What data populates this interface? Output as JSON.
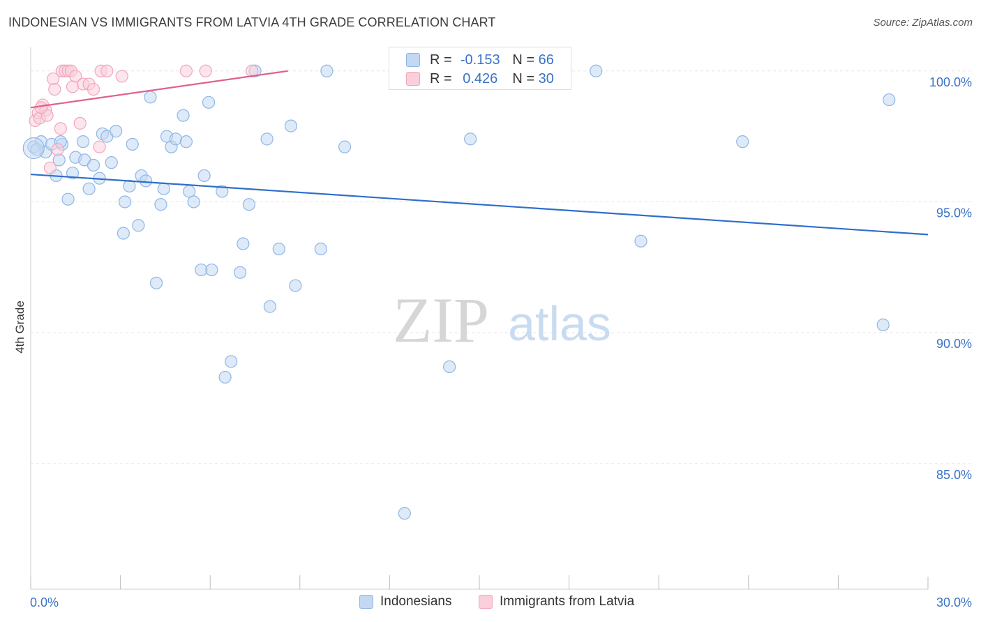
{
  "title": "INDONESIAN VS IMMIGRANTS FROM LATVIA 4TH GRADE CORRELATION CHART",
  "source": "Source: ZipAtlas.com",
  "watermark": {
    "zip": "ZIP",
    "atlas": "atlas"
  },
  "colors": {
    "blue": "#8fb6e6",
    "blue_fill": "#c3d8f3",
    "blue_line": "#2e6fcb",
    "pink": "#f2a6bd",
    "pink_fill": "#f9cfdc",
    "pink_line": "#e0608a",
    "grid": "#e3e3e3",
    "axis_text": "#3a72c6"
  },
  "stats": [
    {
      "r_label": "R =",
      "r_value": "-0.153",
      "n_label": "N =",
      "n_value": "66"
    },
    {
      "r_label": "R =",
      "r_value": "0.426",
      "n_label": "N =",
      "n_value": "30"
    }
  ],
  "legend": [
    {
      "label": "Indonesians"
    },
    {
      "label": "Immigrants from Latvia"
    }
  ],
  "chart_data": {
    "type": "scatter",
    "title": "INDONESIAN VS IMMIGRANTS FROM LATVIA 4TH GRADE CORRELATION CHART",
    "xlabel": "",
    "ylabel": "4th Grade",
    "xlim": [
      0,
      30
    ],
    "ylim": [
      80.2,
      100.9
    ],
    "x_tick_labels": [
      "0.0%",
      "30.0%"
    ],
    "y_ticks": [
      85,
      90,
      95,
      100
    ],
    "y_tick_labels": [
      "85.0%",
      "90.0%",
      "95.0%",
      "100.0%"
    ],
    "grid": true,
    "series": [
      {
        "name": "Indonesians",
        "points": [
          [
            0.1,
            97.1
          ],
          [
            0.35,
            97.3
          ],
          [
            0.5,
            96.9
          ],
          [
            0.7,
            97.2
          ],
          [
            0.85,
            96.0
          ],
          [
            0.95,
            96.6
          ],
          [
            1.05,
            97.2
          ],
          [
            1.25,
            95.1
          ],
          [
            1.4,
            96.1
          ],
          [
            1.5,
            96.7
          ],
          [
            1.75,
            97.3
          ],
          [
            1.8,
            96.6
          ],
          [
            1.95,
            95.5
          ],
          [
            2.1,
            96.4
          ],
          [
            2.3,
            95.9
          ],
          [
            2.4,
            97.6
          ],
          [
            2.55,
            97.5
          ],
          [
            2.7,
            96.5
          ],
          [
            2.85,
            97.7
          ],
          [
            3.1,
            93.8
          ],
          [
            3.15,
            95.0
          ],
          [
            3.3,
            95.6
          ],
          [
            3.4,
            97.2
          ],
          [
            3.6,
            94.1
          ],
          [
            3.7,
            96.0
          ],
          [
            3.85,
            95.8
          ],
          [
            4.0,
            99.0
          ],
          [
            4.2,
            91.9
          ],
          [
            4.35,
            94.9
          ],
          [
            4.45,
            95.5
          ],
          [
            4.55,
            97.5
          ],
          [
            4.7,
            97.1
          ],
          [
            4.85,
            97.4
          ],
          [
            5.1,
            98.3
          ],
          [
            5.2,
            97.3
          ],
          [
            5.3,
            95.4
          ],
          [
            5.45,
            95.0
          ],
          [
            5.7,
            92.4
          ],
          [
            5.8,
            96.0
          ],
          [
            5.95,
            98.8
          ],
          [
            6.05,
            92.4
          ],
          [
            6.4,
            95.4
          ],
          [
            6.5,
            88.3
          ],
          [
            6.7,
            88.9
          ],
          [
            7.0,
            92.3
          ],
          [
            7.1,
            93.4
          ],
          [
            7.3,
            94.9
          ],
          [
            7.5,
            100.0
          ],
          [
            7.9,
            97.4
          ],
          [
            8.0,
            91.0
          ],
          [
            8.3,
            93.2
          ],
          [
            8.7,
            97.9
          ],
          [
            8.85,
            91.8
          ],
          [
            9.7,
            93.2
          ],
          [
            9.9,
            100.0
          ],
          [
            10.5,
            97.1
          ],
          [
            12.5,
            83.1
          ],
          [
            14.0,
            88.7
          ],
          [
            14.7,
            97.4
          ],
          [
            18.9,
            100.0
          ],
          [
            20.4,
            93.5
          ],
          [
            23.8,
            97.3
          ],
          [
            28.5,
            90.3
          ],
          [
            28.7,
            98.9
          ],
          [
            0.2,
            97.0
          ],
          [
            1.0,
            97.3
          ]
        ]
      },
      {
        "name": "Immigrants from Latvia",
        "points": [
          [
            0.15,
            98.1
          ],
          [
            0.25,
            98.4
          ],
          [
            0.3,
            98.2
          ],
          [
            0.4,
            98.7
          ],
          [
            0.5,
            98.5
          ],
          [
            0.55,
            98.3
          ],
          [
            0.65,
            96.3
          ],
          [
            0.75,
            99.7
          ],
          [
            0.8,
            99.3
          ],
          [
            0.9,
            97.0
          ],
          [
            1.0,
            97.8
          ],
          [
            1.05,
            100.0
          ],
          [
            1.15,
            100.0
          ],
          [
            1.25,
            100.0
          ],
          [
            1.35,
            100.0
          ],
          [
            1.4,
            99.4
          ],
          [
            1.5,
            99.8
          ],
          [
            1.65,
            98.0
          ],
          [
            1.75,
            99.5
          ],
          [
            1.95,
            99.5
          ],
          [
            2.1,
            99.3
          ],
          [
            2.35,
            100.0
          ],
          [
            2.3,
            97.1
          ],
          [
            2.55,
            100.0
          ],
          [
            3.05,
            99.8
          ],
          [
            5.2,
            100.0
          ],
          [
            5.85,
            100.0
          ],
          [
            7.4,
            100.0
          ],
          [
            14.3,
            100.0
          ],
          [
            0.35,
            98.6
          ]
        ]
      }
    ],
    "trend_lines": [
      {
        "series": "Indonesians",
        "x": [
          0,
          30
        ],
        "y": [
          96.05,
          93.75
        ]
      },
      {
        "series": "Immigrants from Latvia",
        "x": [
          0,
          8.6
        ],
        "y": [
          98.6,
          100.0
        ]
      }
    ]
  }
}
